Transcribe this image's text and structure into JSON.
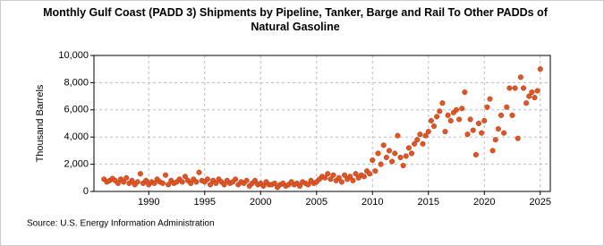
{
  "chart_data": {
    "type": "scatter",
    "title": "Monthly Gulf Coast (PADD 3)  Shipments by Pipeline, Tanker, Barge and Rail To Other PADDs of Natural Gasoline",
    "ylabel": "Thousand Barrels",
    "source": "Source: U.S. Energy Information Administration",
    "color": "#e0561b",
    "grid": true,
    "xlim": [
      1985.1,
      2025.9
    ],
    "xticks": [
      1990,
      1995,
      2000,
      2005,
      2010,
      2015,
      2020,
      2025
    ],
    "ylim": [
      0,
      10000
    ],
    "yticks": [
      0,
      {
        "value": 2000,
        "label": "2,000"
      },
      {
        "value": 4000,
        "label": "4,000"
      },
      {
        "value": 6000,
        "label": "6,000"
      },
      {
        "value": 8000,
        "label": "8,000"
      },
      {
        "value": 10000,
        "label": "10,000"
      }
    ],
    "x": [
      1986,
      1986.25,
      1986.5,
      1986.75,
      1987,
      1987.25,
      1987.5,
      1987.75,
      1988,
      1988.25,
      1988.5,
      1988.75,
      1989,
      1989.25,
      1989.5,
      1989.75,
      1990,
      1990.25,
      1990.5,
      1990.75,
      1991,
      1991.25,
      1991.5,
      1991.75,
      1992,
      1992.25,
      1992.5,
      1992.75,
      1993,
      1993.25,
      1993.5,
      1993.75,
      1994,
      1994.25,
      1994.5,
      1994.75,
      1995,
      1995.25,
      1995.5,
      1995.75,
      1996,
      1996.25,
      1996.5,
      1996.75,
      1997,
      1997.25,
      1997.5,
      1997.75,
      1998,
      1998.25,
      1998.5,
      1998.75,
      1999,
      1999.25,
      1999.5,
      1999.75,
      2000,
      2000.25,
      2000.5,
      2000.75,
      2001,
      2001.25,
      2001.5,
      2001.75,
      2002,
      2002.25,
      2002.5,
      2002.75,
      2003,
      2003.25,
      2003.5,
      2003.75,
      2004,
      2004.25,
      2004.5,
      2004.75,
      2005,
      2005.25,
      2005.5,
      2005.75,
      2006,
      2006.25,
      2006.5,
      2006.75,
      2007,
      2007.25,
      2007.5,
      2007.75,
      2008,
      2008.25,
      2008.5,
      2008.75,
      2009,
      2009.25,
      2009.5,
      2009.75,
      2010,
      2010.25,
      2010.5,
      2010.75,
      2011,
      2011.25,
      2011.5,
      2011.75,
      2012,
      2012.25,
      2012.5,
      2012.75,
      2013,
      2013.25,
      2013.5,
      2013.75,
      2014,
      2014.25,
      2014.5,
      2014.75,
      2015,
      2015.25,
      2015.5,
      2015.75,
      2016,
      2016.25,
      2016.5,
      2016.75,
      2017,
      2017.25,
      2017.5,
      2017.75,
      2018,
      2018.25,
      2018.5,
      2018.75,
      2019,
      2019.25,
      2019.5,
      2019.75,
      2020,
      2020.25,
      2020.5,
      2020.75,
      2021,
      2021.25,
      2021.5,
      2021.75,
      2022,
      2022.25,
      2022.5,
      2022.75,
      2023,
      2023.25,
      2023.5,
      2023.75,
      2024,
      2024.25,
      2024.5,
      2024.75,
      2025
    ],
    "values": [
      900,
      700,
      800,
      950,
      800,
      600,
      900,
      700,
      1000,
      600,
      800,
      500,
      700,
      1300,
      600,
      800,
      500,
      700,
      600,
      900,
      700,
      600,
      1200,
      500,
      800,
      600,
      700,
      900,
      700,
      1100,
      800,
      600,
      900,
      700,
      1400,
      800,
      700,
      900,
      500,
      800,
      600,
      900,
      700,
      500,
      800,
      600,
      700,
      900,
      500,
      700,
      600,
      800,
      400,
      600,
      800,
      500,
      600,
      400,
      700,
      500,
      500,
      600,
      300,
      500,
      600,
      400,
      500,
      700,
      500,
      600,
      400,
      700,
      600,
      500,
      800,
      600,
      700,
      900,
      1100,
      1000,
      1300,
      900,
      1200,
      800,
      1000,
      700,
      1200,
      900,
      1100,
      800,
      1300,
      1000,
      1200,
      1100,
      1500,
      1300,
      2300,
      1500,
      2800,
      2000,
      3400,
      2500,
      3000,
      2200,
      2800,
      4100,
      2500,
      1900,
      2600,
      3200,
      2800,
      3500,
      3800,
      4200,
      3500,
      4100,
      4400,
      5200,
      4800,
      5500,
      5900,
      6500,
      4400,
      5600,
      5200,
      5800,
      6000,
      5300,
      6100,
      7300,
      4200,
      5300,
      4500,
      2700,
      5000,
      4300,
      5200,
      6200,
      6800,
      3000,
      3800,
      4600,
      5600,
      4300,
      6200,
      7600,
      5600,
      7600,
      3900,
      8400,
      7600,
      6500,
      7000,
      7300,
      6900,
      7400,
      9000
    ]
  }
}
